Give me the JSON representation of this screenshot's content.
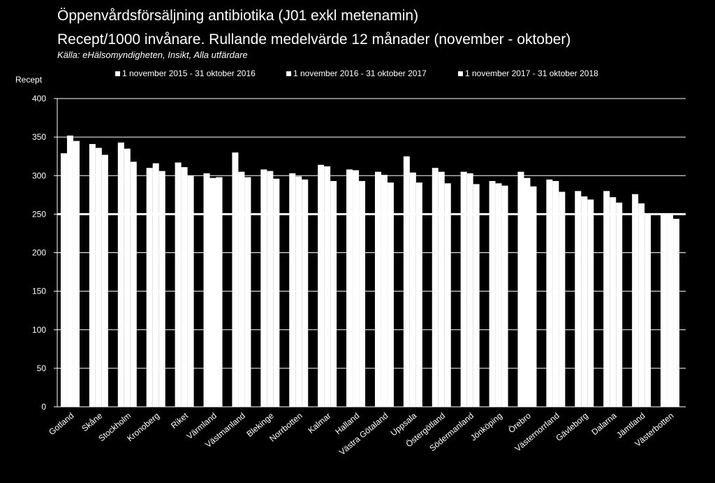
{
  "chart_data": {
    "type": "bar",
    "title": "Öppenvårdsförsäljning antibiotika (J01 exkl metenamin)",
    "subtitle": "Recept/1000 invånare. Rullande medelvärde 12 månader (november - oktober)",
    "source": "Källa: eHälsomyndigheten, Insikt, Alla utfärdare",
    "ylabel": "Recept",
    "xlabel": "",
    "ylim": [
      0,
      400
    ],
    "yticks": [
      0,
      50,
      100,
      150,
      200,
      250,
      300,
      350,
      400
    ],
    "grid": true,
    "reference_line": 250,
    "legend_position": "top",
    "categories": [
      "Gotland",
      "Skåne",
      "Stockholm",
      "Kronoberg",
      "Riket",
      "Värmland",
      "Västmanland",
      "Blekinge",
      "Norrbotten",
      "Kalmar",
      "Halland",
      "Västra Götaland",
      "Uppsala",
      "Östergötland",
      "Södermanland",
      "Jönköping",
      "Örebro",
      "Västernorrland",
      "Gävleborg",
      "Dalarna",
      "Jämtland",
      "Västerbotten"
    ],
    "series": [
      {
        "name": "1 november 2015 - 31 oktober 2016",
        "values": [
          329,
          341,
          343,
          310,
          317,
          303,
          330,
          308,
          303,
          314,
          308,
          305,
          325,
          310,
          305,
          293,
          305,
          295,
          280,
          280,
          276,
          251
        ]
      },
      {
        "name": "1 november 2016 - 31 oktober 2017",
        "values": [
          352,
          336,
          335,
          316,
          311,
          297,
          305,
          306,
          299,
          312,
          307,
          301,
          304,
          305,
          303,
          290,
          297,
          293,
          273,
          272,
          264,
          250
        ]
      },
      {
        "name": "1 november 2017 - 31 oktober 2018",
        "values": [
          345,
          327,
          318,
          306,
          300,
          298,
          298,
          296,
          295,
          293,
          293,
          291,
          291,
          290,
          289,
          287,
          286,
          279,
          269,
          265,
          250,
          244
        ]
      }
    ],
    "colors": {
      "background": "#000000",
      "bars": "#ffffff",
      "grid": "#ffffff",
      "text": "#ffffff"
    }
  }
}
